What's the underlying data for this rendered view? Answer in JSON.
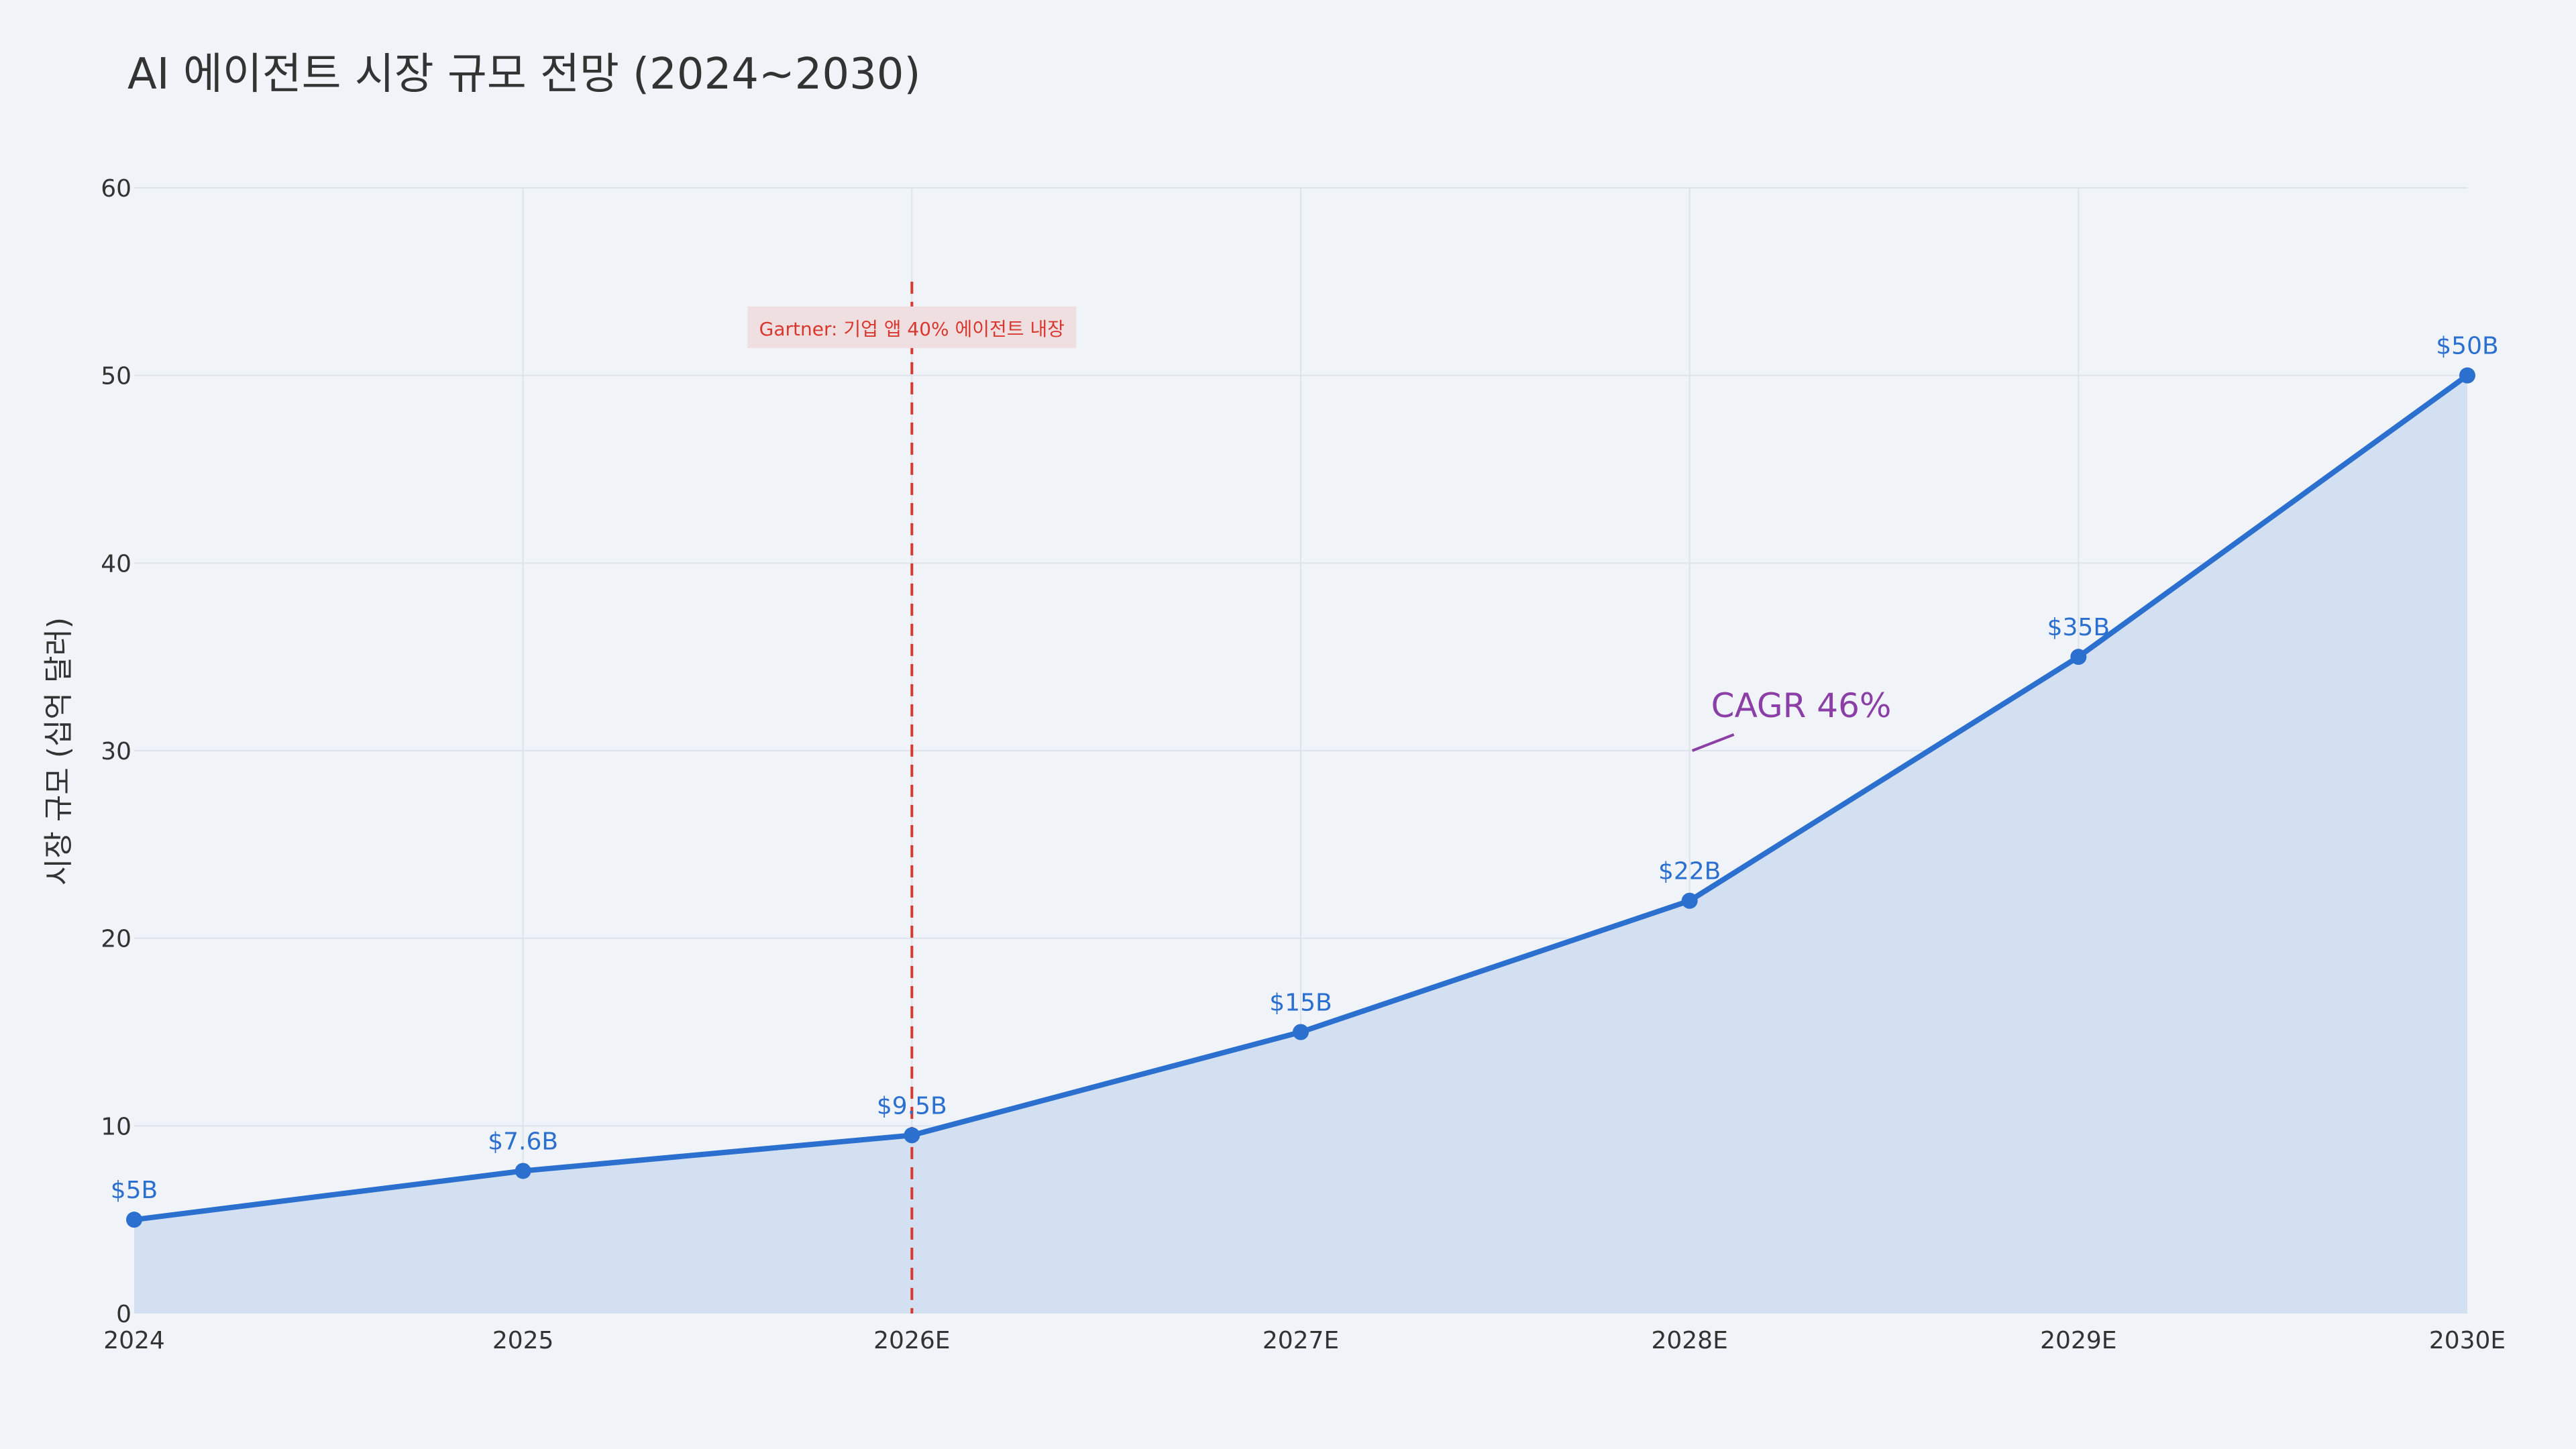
{
  "chart_data": {
    "type": "area",
    "title": "AI 에이전트 시장 규모 전망 (2024~2030)",
    "xlabel": "",
    "ylabel": "시장 규모 (십억 달러)",
    "categories": [
      "2024",
      "2025",
      "2026E",
      "2027E",
      "2028E",
      "2029E",
      "2030E"
    ],
    "values": [
      5,
      7.6,
      9.5,
      15,
      22,
      35,
      50
    ],
    "data_labels": [
      "$5B",
      "$7.6B",
      "$9.5B",
      "$15B",
      "$22B",
      "$35B",
      "$50B"
    ],
    "ylim": [
      0,
      60
    ],
    "yticks": [
      0,
      10,
      20,
      30,
      40,
      50,
      60
    ],
    "grid": true,
    "vline": {
      "x": "2026E",
      "y_top": 55,
      "label": "Gartner: 기업 앱 40% 에이전트 내장"
    },
    "annotation": {
      "text": "CAGR 46%",
      "x": "2028E",
      "y": 30
    },
    "colors": {
      "line": "#2b6fcf",
      "fill": "#d3e0f1",
      "marker": "#2b6fcf",
      "vline": "#d9382f",
      "vline_label_bg": "#f0dfe1",
      "annotation": "#8a3ea6",
      "grid": "#dde3ea",
      "background": "#f0f4f9"
    }
  }
}
